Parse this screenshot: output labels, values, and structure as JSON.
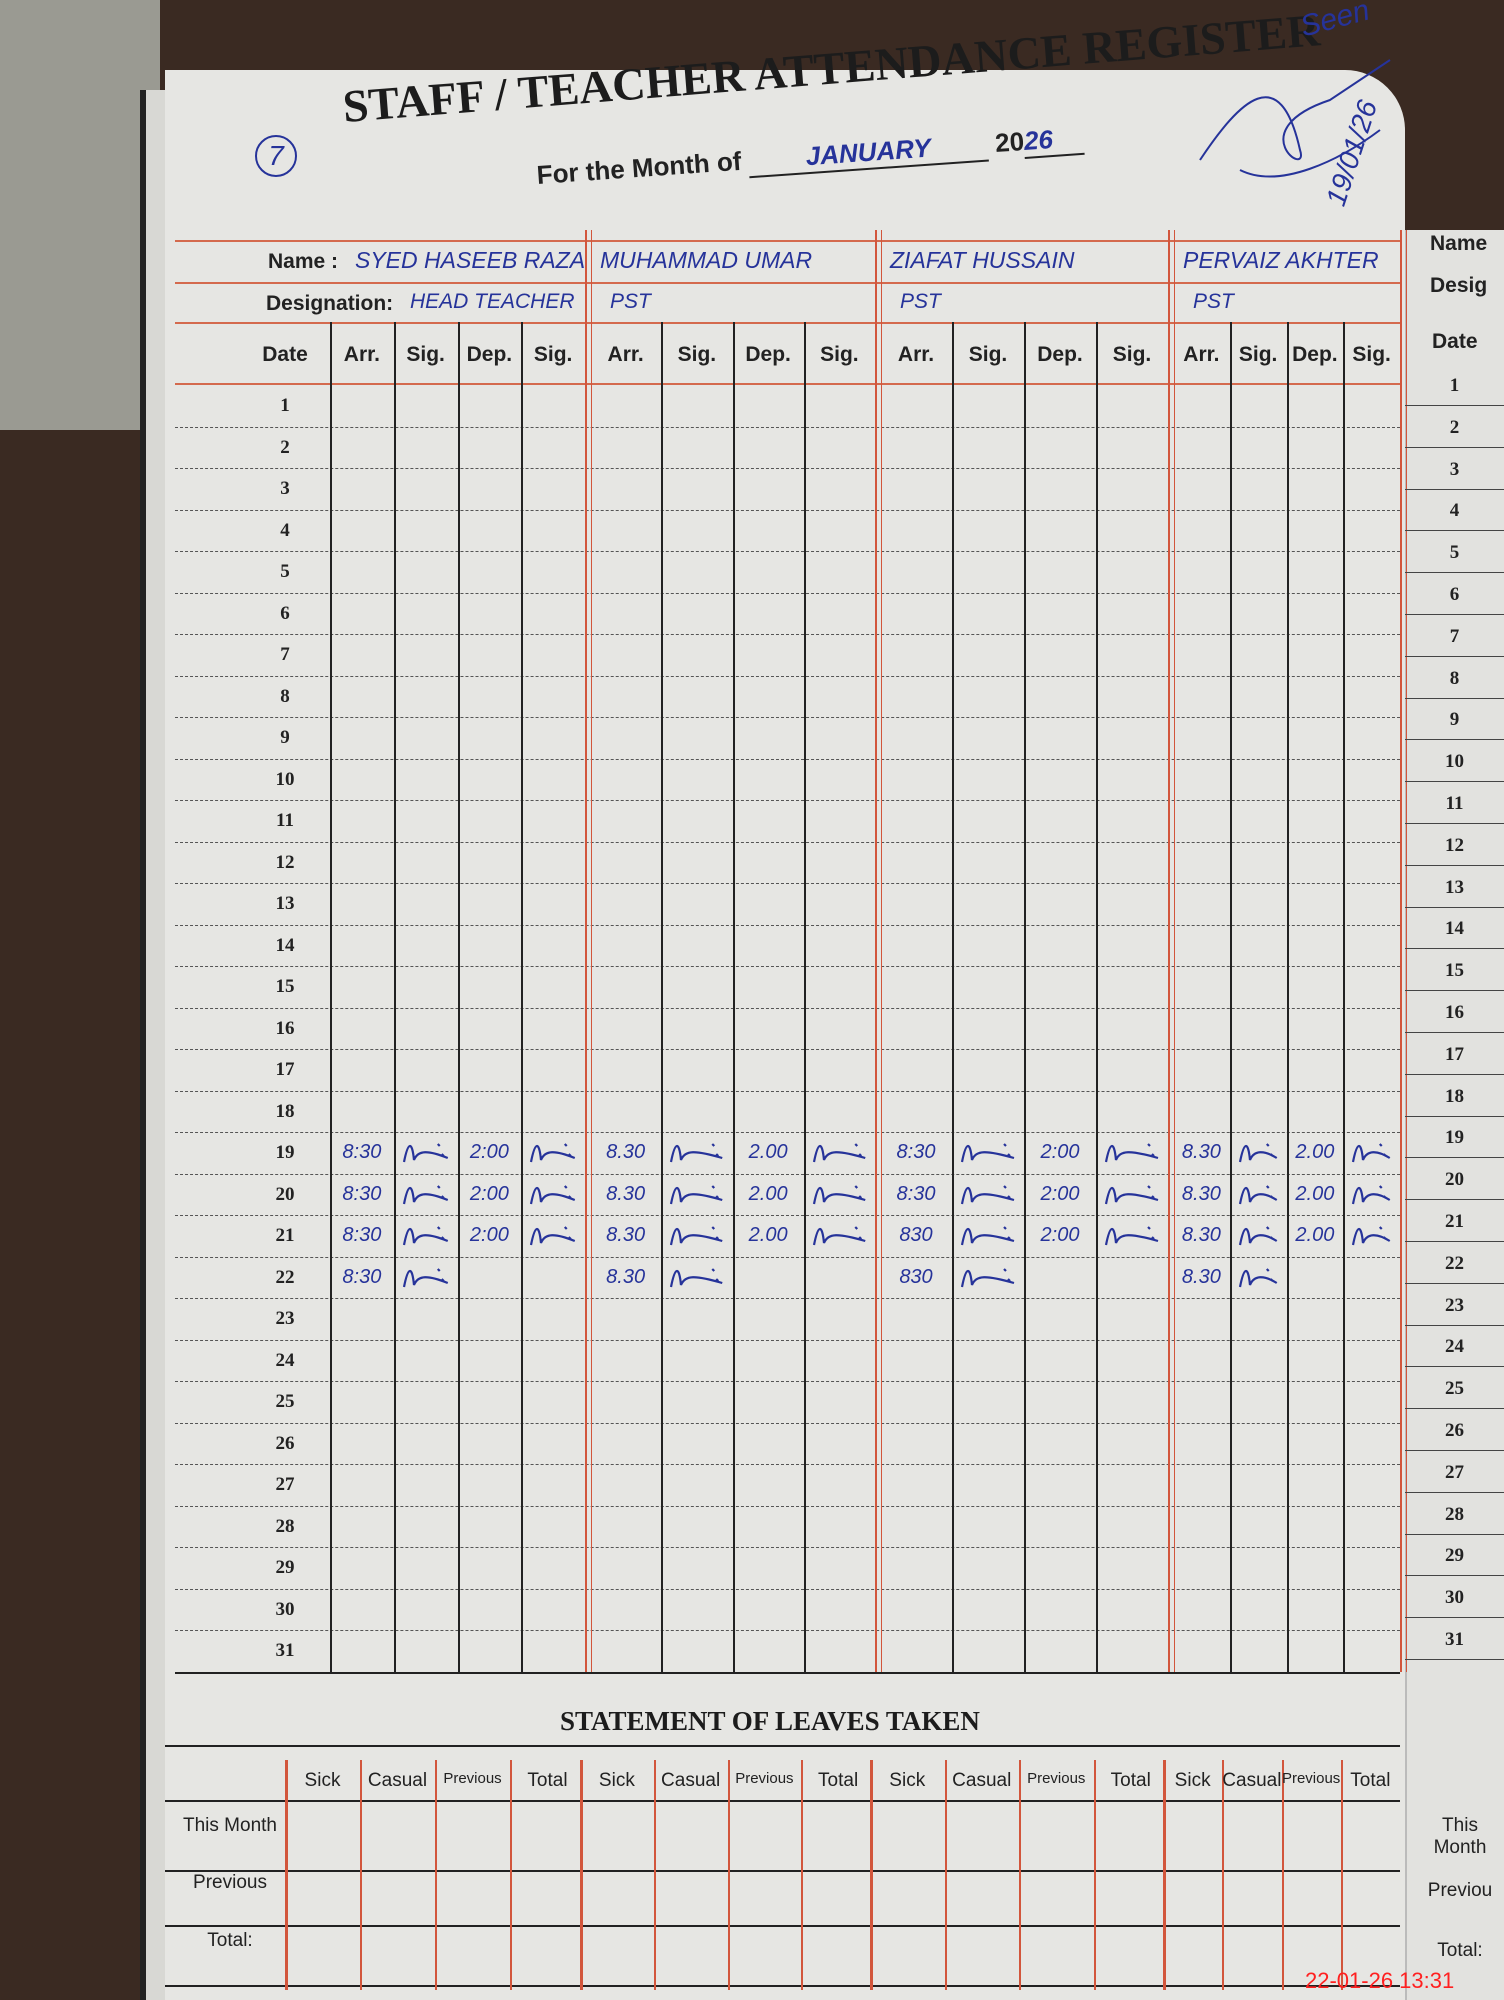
{
  "register": {
    "page_number": "7",
    "title": "STAFF / TEACHER ATTENDANCE REGISTER",
    "month_label": "For the Month of",
    "month_value": "JANUARY",
    "year_prefix": "20",
    "year_suffix": "26",
    "name_label": "Name :",
    "designation_label": "Designation:",
    "date_header": "Date",
    "column_headers": [
      "Arr.",
      "Sig.",
      "Dep.",
      "Sig."
    ],
    "seen_note": "Seen",
    "seen_date": "19/01/26"
  },
  "colors": {
    "ink": "#26339a",
    "rule_red": "#d2563c",
    "paper": "#e6e6e3",
    "timestamp": "#ff2020"
  },
  "dates": [
    "1",
    "2",
    "3",
    "4",
    "5",
    "6",
    "7",
    "8",
    "9",
    "10",
    "11",
    "12",
    "13",
    "14",
    "15",
    "16",
    "17",
    "18",
    "19",
    "20",
    "21",
    "22",
    "23",
    "24",
    "25",
    "26",
    "27",
    "28",
    "29",
    "30",
    "31"
  ],
  "staff": [
    {
      "name": "SYED HASEEB RAZA",
      "designation": "HEAD TEACHER",
      "entries": [
        {
          "date": "19",
          "arr": "8:30",
          "arr_sig": true,
          "dep": "2:00",
          "dep_sig": true
        },
        {
          "date": "20",
          "arr": "8:30",
          "arr_sig": true,
          "dep": "2:00",
          "dep_sig": true
        },
        {
          "date": "21",
          "arr": "8:30",
          "arr_sig": true,
          "dep": "2:00",
          "dep_sig": true
        },
        {
          "date": "22",
          "arr": "8:30",
          "arr_sig": true,
          "dep": "",
          "dep_sig": false
        }
      ]
    },
    {
      "name": "MUHAMMAD UMAR",
      "designation": "PST",
      "entries": [
        {
          "date": "19",
          "arr": "8.30",
          "arr_sig": true,
          "dep": "2.00",
          "dep_sig": true
        },
        {
          "date": "20",
          "arr": "8.30",
          "arr_sig": true,
          "dep": "2.00",
          "dep_sig": true
        },
        {
          "date": "21",
          "arr": "8.30",
          "arr_sig": true,
          "dep": "2.00",
          "dep_sig": true
        },
        {
          "date": "22",
          "arr": "8.30",
          "arr_sig": true,
          "dep": "",
          "dep_sig": false
        }
      ]
    },
    {
      "name": "ZIAFAT HUSSAIN",
      "designation": "PST",
      "entries": [
        {
          "date": "19",
          "arr": "8:30",
          "arr_sig": true,
          "dep": "2:00",
          "dep_sig": true
        },
        {
          "date": "20",
          "arr": "8:30",
          "arr_sig": true,
          "dep": "2:00",
          "dep_sig": true
        },
        {
          "date": "21",
          "arr": "830",
          "arr_sig": true,
          "dep": "2:00",
          "dep_sig": true
        },
        {
          "date": "22",
          "arr": "830",
          "arr_sig": true,
          "dep": "",
          "dep_sig": false
        }
      ]
    },
    {
      "name": "PERVAIZ AKHTER",
      "designation": "PST",
      "entries": [
        {
          "date": "19",
          "arr": "8.30",
          "arr_sig": true,
          "dep": "2.00",
          "dep_sig": true
        },
        {
          "date": "20",
          "arr": "8.30",
          "arr_sig": true,
          "dep": "2.00",
          "dep_sig": true
        },
        {
          "date": "21",
          "arr": "8.30",
          "arr_sig": true,
          "dep": "2.00",
          "dep_sig": true
        },
        {
          "date": "22",
          "arr": "8.30",
          "arr_sig": true,
          "dep": "",
          "dep_sig": false
        }
      ]
    }
  ],
  "leaves": {
    "title": "STATEMENT OF LEAVES TAKEN",
    "column_headers": [
      "Sick",
      "Casual",
      "Previous",
      "Total"
    ],
    "row_labels": [
      "This Month",
      "Previous",
      "Total:"
    ]
  },
  "right_page": {
    "name_label": "Name",
    "designation_label": "Desig",
    "date_header": "Date",
    "row_labels": [
      "This Month",
      "Previou",
      "Total:"
    ]
  },
  "photo_timestamp": "22-01-26 13:31"
}
